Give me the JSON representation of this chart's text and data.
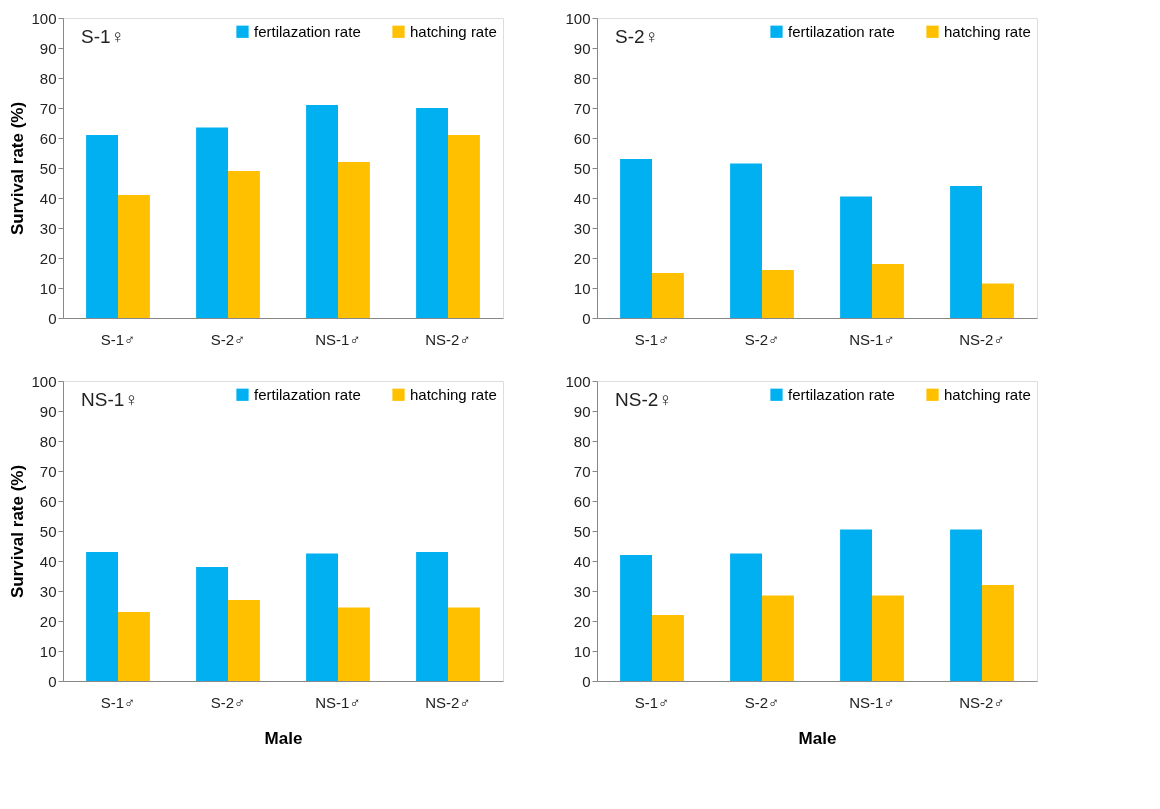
{
  "chart_data": [
    {
      "type": "bar",
      "title": "S-1♀",
      "ylabel": "Survival rate (%)",
      "categories": [
        "S-1♂",
        "S-2♂",
        "NS-1♂",
        "NS-2♂"
      ],
      "ylim": [
        0,
        100
      ],
      "yticks": [
        0,
        10,
        20,
        30,
        40,
        50,
        60,
        70,
        80,
        90,
        100
      ],
      "grid": false,
      "legend": "top right",
      "series": [
        {
          "name": "fertilazation rate",
          "color": "#00b0f0",
          "values": [
            61,
            63.5,
            71,
            70
          ]
        },
        {
          "name": "hatching rate",
          "color": "#ffc000",
          "values": [
            41,
            49,
            52,
            61
          ]
        }
      ]
    },
    {
      "type": "bar",
      "title": "S-2♀",
      "categories": [
        "S-1♂",
        "S-2♂",
        "NS-1♂",
        "NS-2♂"
      ],
      "ylim": [
        0,
        100
      ],
      "yticks": [
        0,
        10,
        20,
        30,
        40,
        50,
        60,
        70,
        80,
        90,
        100
      ],
      "grid": false,
      "legend": "top right",
      "series": [
        {
          "name": "fertilazation rate",
          "color": "#00b0f0",
          "values": [
            53,
            51.5,
            40.5,
            44
          ]
        },
        {
          "name": "hatching rate",
          "color": "#ffc000",
          "values": [
            15,
            16,
            18,
            11.5
          ]
        }
      ]
    },
    {
      "type": "bar",
      "title": "NS-1♀",
      "ylabel": "Survival rate (%)",
      "xlabel": "Male",
      "categories": [
        "S-1♂",
        "S-2♂",
        "NS-1♂",
        "NS-2♂"
      ],
      "ylim": [
        0,
        100
      ],
      "yticks": [
        0,
        10,
        20,
        30,
        40,
        50,
        60,
        70,
        80,
        90,
        100
      ],
      "grid": false,
      "legend": "top right",
      "series": [
        {
          "name": "fertilazation rate",
          "color": "#00b0f0",
          "values": [
            43,
            38,
            42.5,
            43
          ]
        },
        {
          "name": "hatching rate",
          "color": "#ffc000",
          "values": [
            23,
            27,
            24.5,
            24.5
          ]
        }
      ]
    },
    {
      "type": "bar",
      "title": "NS-2♀",
      "xlabel": "Male",
      "categories": [
        "S-1♂",
        "S-2♂",
        "NS-1♂",
        "NS-2♂"
      ],
      "ylim": [
        0,
        100
      ],
      "yticks": [
        0,
        10,
        20,
        30,
        40,
        50,
        60,
        70,
        80,
        90,
        100
      ],
      "grid": false,
      "legend": "top right",
      "series": [
        {
          "name": "fertilazation rate",
          "color": "#00b0f0",
          "values": [
            42,
            42.5,
            50.5,
            50.5
          ]
        },
        {
          "name": "hatching rate",
          "color": "#ffc000",
          "values": [
            22,
            28.5,
            28.5,
            32
          ]
        }
      ]
    }
  ]
}
